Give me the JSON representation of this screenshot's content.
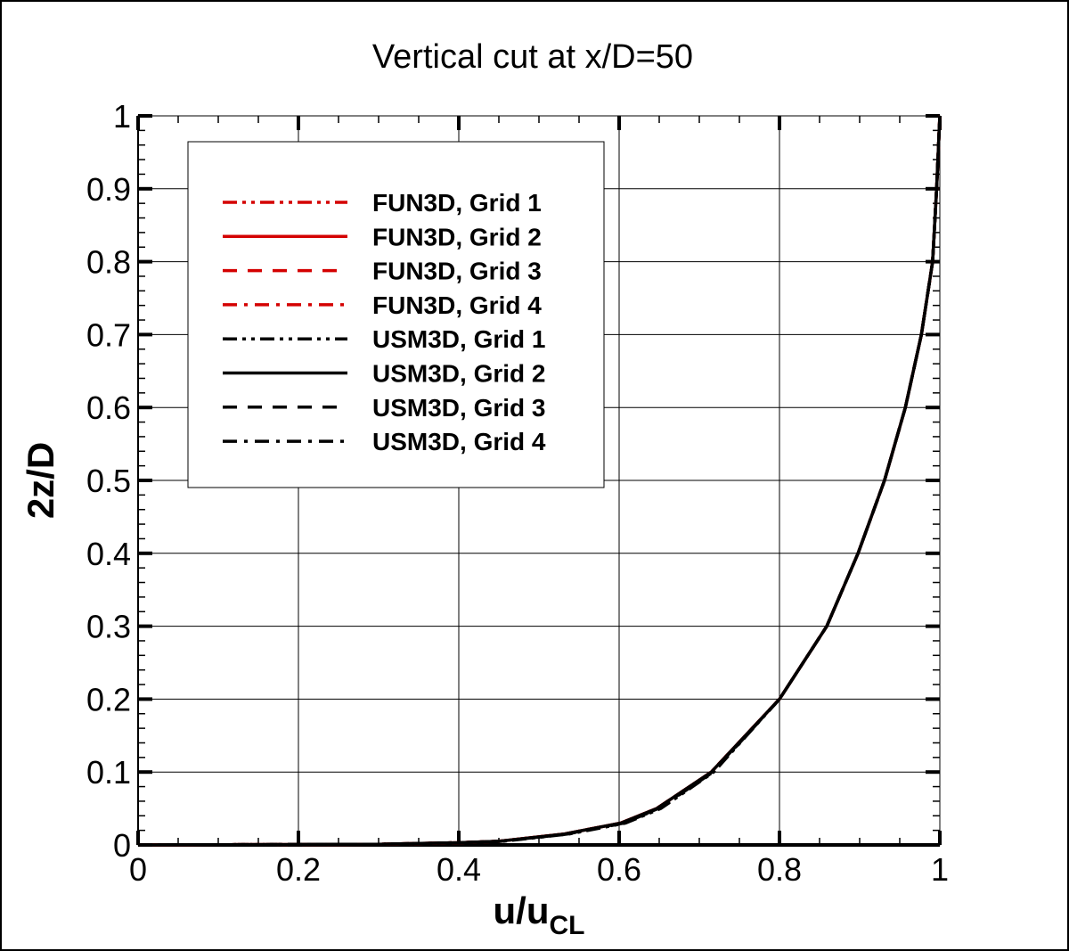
{
  "chart_data": {
    "type": "line",
    "title": "Vertical cut at x/D=50",
    "xlabel": "u/u",
    "xlabel_sub": "CL",
    "ylabel": "2z/D",
    "xlim": [
      0,
      1
    ],
    "ylim": [
      0,
      1
    ],
    "xticks": [
      "0",
      "0.2",
      "0.4",
      "0.6",
      "0.8",
      "1"
    ],
    "yticks": [
      "0",
      "0.1",
      "0.2",
      "0.3",
      "0.4",
      "0.5",
      "0.6",
      "0.7",
      "0.8",
      "0.9",
      "1"
    ],
    "grid": true,
    "legend_position": "top-left",
    "colors": {
      "FUN3D": "#d40000",
      "USM3D": "#000000"
    },
    "series": [
      {
        "name": "FUN3D, Grid 1",
        "color": "#d40000",
        "dash": "dash-dot-dot",
        "x": [
          0,
          0.3,
          0.4,
          0.45,
          0.532,
          0.602,
          0.647,
          0.715,
          0.8,
          0.859,
          0.898,
          0.931,
          0.957,
          0.977,
          0.991,
          0.996,
          1.0
        ],
        "y": [
          0,
          0.001,
          0.003,
          0.005,
          0.015,
          0.03,
          0.05,
          0.1,
          0.2,
          0.3,
          0.4,
          0.5,
          0.6,
          0.7,
          0.8,
          0.9,
          1.0
        ]
      },
      {
        "name": "FUN3D, Grid 2",
        "color": "#d40000",
        "dash": "solid",
        "x": [
          0,
          0.3,
          0.4,
          0.45,
          0.532,
          0.602,
          0.647,
          0.715,
          0.8,
          0.859,
          0.898,
          0.931,
          0.957,
          0.977,
          0.991,
          0.996,
          1.0
        ],
        "y": [
          0,
          0.001,
          0.003,
          0.005,
          0.015,
          0.03,
          0.05,
          0.1,
          0.2,
          0.3,
          0.4,
          0.5,
          0.6,
          0.7,
          0.8,
          0.9,
          1.0
        ]
      },
      {
        "name": "FUN3D, Grid 3",
        "color": "#d40000",
        "dash": "dashed",
        "x": [
          0,
          0.3,
          0.4,
          0.45,
          0.532,
          0.602,
          0.647,
          0.715,
          0.8,
          0.859,
          0.898,
          0.931,
          0.957,
          0.977,
          0.991,
          0.996,
          1.0
        ],
        "y": [
          0,
          0.001,
          0.003,
          0.005,
          0.015,
          0.03,
          0.05,
          0.1,
          0.2,
          0.3,
          0.4,
          0.5,
          0.6,
          0.7,
          0.8,
          0.9,
          1.0
        ]
      },
      {
        "name": "FUN3D, Grid 4",
        "color": "#d40000",
        "dash": "dash-dot",
        "x": [
          0,
          0.3,
          0.4,
          0.45,
          0.532,
          0.602,
          0.647,
          0.715,
          0.8,
          0.859,
          0.898,
          0.931,
          0.957,
          0.977,
          0.991,
          0.996,
          1.0
        ],
        "y": [
          0,
          0.001,
          0.003,
          0.005,
          0.015,
          0.03,
          0.05,
          0.1,
          0.2,
          0.3,
          0.4,
          0.5,
          0.6,
          0.7,
          0.8,
          0.9,
          1.0
        ]
      },
      {
        "name": "USM3D, Grid 1",
        "color": "#000000",
        "dash": "dash-dot-dot",
        "x": [
          0,
          0.3,
          0.4,
          0.455,
          0.538,
          0.608,
          0.652,
          0.718,
          0.8,
          0.859,
          0.898,
          0.931,
          0.957,
          0.977,
          0.991,
          0.996,
          1.0
        ],
        "y": [
          0,
          0.001,
          0.003,
          0.005,
          0.015,
          0.03,
          0.05,
          0.1,
          0.2,
          0.3,
          0.4,
          0.5,
          0.6,
          0.7,
          0.8,
          0.9,
          1.0
        ]
      },
      {
        "name": "USM3D, Grid 2",
        "color": "#000000",
        "dash": "solid",
        "x": [
          0,
          0.3,
          0.4,
          0.45,
          0.532,
          0.602,
          0.647,
          0.715,
          0.8,
          0.859,
          0.898,
          0.931,
          0.957,
          0.977,
          0.991,
          0.996,
          1.0
        ],
        "y": [
          0,
          0.001,
          0.003,
          0.005,
          0.015,
          0.03,
          0.05,
          0.1,
          0.2,
          0.3,
          0.4,
          0.5,
          0.6,
          0.7,
          0.8,
          0.9,
          1.0
        ]
      },
      {
        "name": "USM3D, Grid 3",
        "color": "#000000",
        "dash": "dashed",
        "x": [
          0,
          0.3,
          0.4,
          0.453,
          0.536,
          0.606,
          0.65,
          0.717,
          0.8,
          0.859,
          0.898,
          0.931,
          0.957,
          0.977,
          0.991,
          0.996,
          1.0
        ],
        "y": [
          0,
          0.001,
          0.003,
          0.005,
          0.015,
          0.03,
          0.05,
          0.1,
          0.2,
          0.3,
          0.4,
          0.5,
          0.6,
          0.7,
          0.8,
          0.9,
          1.0
        ]
      },
      {
        "name": "USM3D, Grid 4",
        "color": "#000000",
        "dash": "dash-dot",
        "x": [
          0,
          0.3,
          0.4,
          0.452,
          0.534,
          0.604,
          0.649,
          0.716,
          0.8,
          0.859,
          0.898,
          0.931,
          0.957,
          0.977,
          0.991,
          0.996,
          1.0
        ],
        "y": [
          0,
          0.001,
          0.003,
          0.005,
          0.015,
          0.03,
          0.05,
          0.1,
          0.2,
          0.3,
          0.4,
          0.5,
          0.6,
          0.7,
          0.8,
          0.9,
          1.0
        ]
      }
    ]
  }
}
